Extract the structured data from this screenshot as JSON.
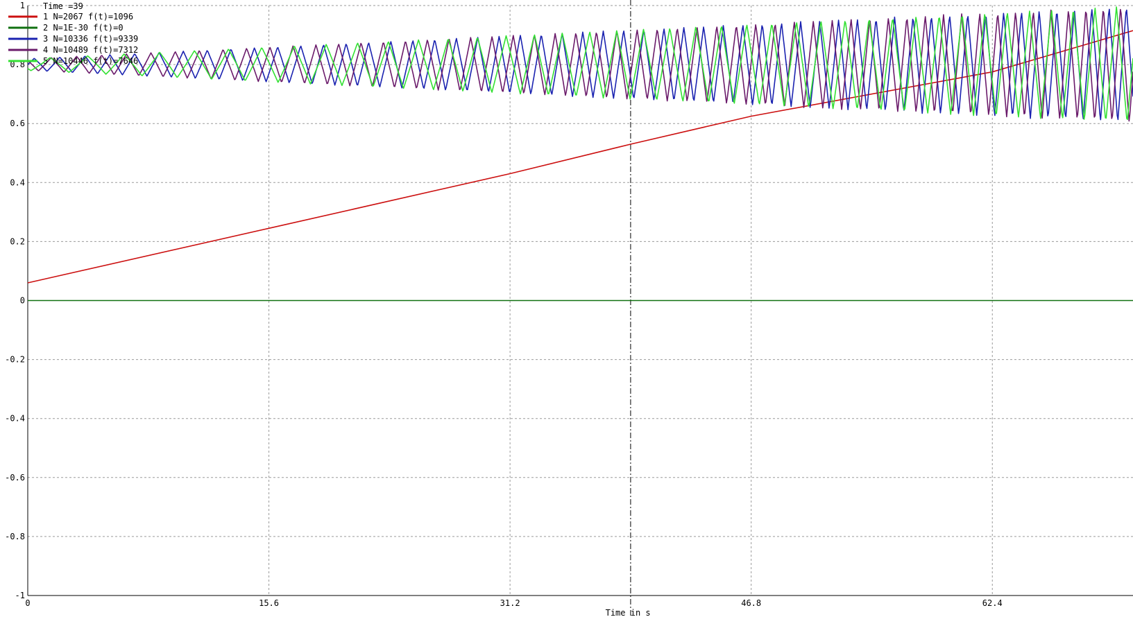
{
  "chart_data": {
    "type": "line",
    "xlabel": "Time in s",
    "ylabel": "",
    "xlim": [
      0,
      71.5
    ],
    "ylim": [
      -1,
      1
    ],
    "x_ticks": [
      "0",
      "15.6",
      "31.2",
      "46.8",
      "62.4"
    ],
    "x_tick_values": [
      0,
      15.6,
      31.2,
      46.8,
      62.4
    ],
    "y_ticks": [
      "1",
      "0.8",
      "0.6",
      "0.4",
      "0.2",
      "0",
      "-0.2",
      "-0.4",
      "-0.6",
      "-0.8",
      "-1"
    ],
    "y_tick_values": [
      1,
      0.8,
      0.6,
      0.4,
      0.2,
      0,
      -0.2,
      -0.4,
      -0.6,
      -0.8,
      -1
    ],
    "grid": true,
    "cursor": {
      "x": 39,
      "label": "Time  =39"
    },
    "legend_position": "top-left",
    "series": [
      {
        "name": "1 N=2067 f(t)=1096",
        "color": "#cc1010",
        "kind": "ramp",
        "x": [
          0,
          15.6,
          31.2,
          39,
          46.8,
          62.4,
          71.5
        ],
        "values": [
          0.06,
          0.245,
          0.43,
          0.53,
          0.625,
          0.775,
          0.915
        ]
      },
      {
        "name": "2 N=1E-30 f(t)=0",
        "color": "#107010",
        "kind": "constant",
        "x": [
          0,
          71.5
        ],
        "values": [
          0,
          0
        ]
      },
      {
        "name": "3 N=10336 f(t)=9339",
        "color": "#1a22b0",
        "kind": "chirp",
        "f0": 0.6,
        "k": 0.0042,
        "phase": 0.0,
        "center": 0.8,
        "amp_start": 0.02,
        "amp_end": 0.2
      },
      {
        "name": "4 N=10489 f(t)=7312",
        "color": "#6a1a6a",
        "kind": "chirp",
        "f0": 0.6,
        "k": 0.0042,
        "phase": 2.1,
        "center": 0.8,
        "amp_start": 0.02,
        "amp_end": 0.2
      },
      {
        "name": "5 N=10446 f(t)=7646",
        "color": "#33e033",
        "kind": "chirp",
        "f0": 0.4,
        "k": 0.0046,
        "phase": 4.2,
        "center": 0.8,
        "amp_start": 0.02,
        "amp_end": 0.2
      }
    ]
  }
}
